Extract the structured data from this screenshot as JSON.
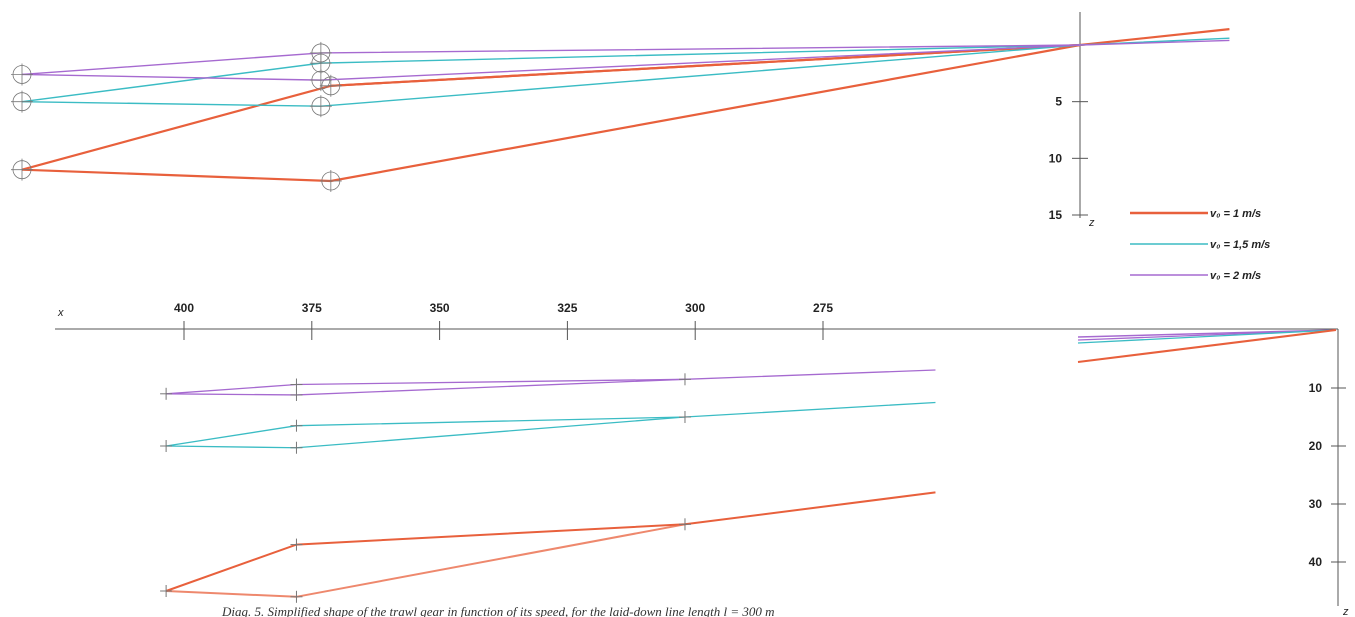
{
  "caption": "Diag. 5. Simplified shape of the trawl gear in function of its speed, for the laid-down line length l = 300 m",
  "colors": {
    "v1": "#e8603c",
    "v15": "#3bbcc4",
    "v2": "#a66ad0",
    "axis": "#555555",
    "marker": "#777777"
  },
  "legend": [
    {
      "key": "v1",
      "label": "v₀ = 1 m/s"
    },
    {
      "key": "v15",
      "label": "v₀ = 1,5 m/s"
    },
    {
      "key": "v2",
      "label": "v₀ = 2 m/s"
    }
  ],
  "chart_data": [
    {
      "type": "line",
      "view": "front",
      "xlabel": "",
      "ylabel": "z",
      "yticks": [
        "5",
        "10",
        "15"
      ],
      "ylim": [
        0,
        15
      ],
      "xlim": [
        -1080,
        150
      ],
      "series": [
        {
          "key": "v1",
          "paths": [
            [
              [
                -1062,
                11
              ],
              [
                -752,
                3.6
              ],
              [
                0,
                0
              ],
              [
                150,
                -1.4
              ]
            ],
            [
              [
                -1062,
                11
              ],
              [
                -752,
                12
              ],
              [
                0,
                0
              ]
            ],
            [
              [
                -752,
                3.6
              ],
              [
                0,
                0
              ]
            ]
          ],
          "markers": [
            [
              -1062,
              11
            ],
            [
              -752,
              3.6
            ],
            [
              -752,
              12
            ]
          ]
        },
        {
          "key": "v15",
          "paths": [
            [
              [
                -1062,
                5
              ],
              [
                -762,
                1.6
              ],
              [
                0,
                0
              ],
              [
                150,
                -0.6
              ]
            ],
            [
              [
                -1062,
                5
              ],
              [
                -762,
                5.4
              ],
              [
                0,
                0
              ]
            ]
          ],
          "markers": [
            [
              -1062,
              5
            ],
            [
              -762,
              1.6
            ],
            [
              -762,
              5.4
            ]
          ]
        },
        {
          "key": "v2",
          "paths": [
            [
              [
                -1062,
                2.6
              ],
              [
                -762,
                0.7
              ],
              [
                0,
                0
              ],
              [
                150,
                -0.4
              ]
            ],
            [
              [
                -1062,
                2.6
              ],
              [
                -762,
                3.1
              ],
              [
                0,
                0
              ]
            ]
          ],
          "markers": [
            [
              -1062,
              2.6
            ],
            [
              -762,
              0.7
            ],
            [
              -762,
              3.1
            ]
          ]
        }
      ]
    },
    {
      "type": "line",
      "view": "plan",
      "xlabel": "x",
      "ylabel": "z",
      "xticks": [
        "400",
        "375",
        "350",
        "325",
        "300",
        "275"
      ],
      "xlim": [
        435,
        270
      ],
      "yticks": [
        "10",
        "20",
        "30",
        "40"
      ],
      "ylim": [
        0,
        45
      ],
      "series": [
        {
          "key": "v1",
          "paths": [
            [
              [
                403.5,
                45
              ],
              [
                378,
                37
              ],
              [
                302,
                33.5
              ],
              [
                253,
                28
              ]
            ],
            [
              [
                403.5,
                45
              ],
              [
                378,
                46
              ],
              [
                302,
                33.5
              ]
            ]
          ],
          "markers": [
            [
              403.5,
              45
            ],
            [
              378,
              37
            ],
            [
              378,
              46
            ],
            [
              302,
              33.5
            ]
          ]
        },
        {
          "key": "v15",
          "paths": [
            [
              [
                403.5,
                20
              ],
              [
                378,
                16.5
              ],
              [
                302,
                15
              ],
              [
                253,
                12.5
              ]
            ],
            [
              [
                403.5,
                20
              ],
              [
                378,
                20.3
              ],
              [
                302,
                15
              ]
            ]
          ],
          "markers": [
            [
              403.5,
              20
            ],
            [
              378,
              16.5
            ],
            [
              378,
              20.3
            ],
            [
              302,
              15
            ]
          ]
        },
        {
          "key": "v2",
          "paths": [
            [
              [
                403.5,
                11
              ],
              [
                378,
                9.4
              ],
              [
                302,
                8.5
              ],
              [
                253,
                6.9
              ]
            ],
            [
              [
                403.5,
                11
              ],
              [
                378,
                11.2
              ],
              [
                302,
                8.5
              ]
            ]
          ],
          "markers": [
            [
              403.5,
              11
            ],
            [
              378,
              9.4
            ],
            [
              378,
              11.2
            ],
            [
              302,
              8.5
            ]
          ]
        }
      ]
    }
  ]
}
